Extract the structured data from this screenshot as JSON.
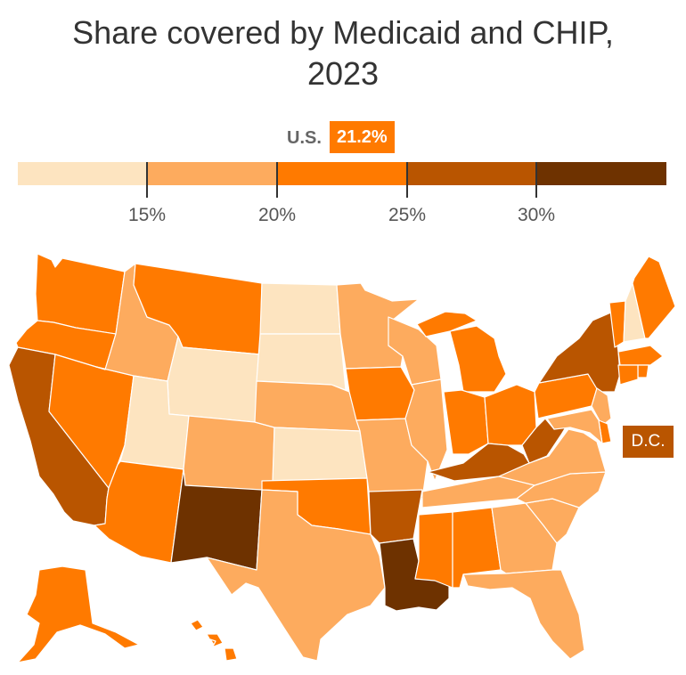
{
  "title_line1": "Share covered by Medicaid and CHIP,",
  "title_line2": "2023",
  "us": {
    "label": "U.S.",
    "value": "21.2%"
  },
  "legend": {
    "bins": [
      {
        "color": "#fde4c0"
      },
      {
        "color": "#fdab5e"
      },
      {
        "color": "#ff7a00"
      },
      {
        "color": "#b95500"
      },
      {
        "color": "#6e3200"
      }
    ],
    "ticks": [
      "15%",
      "20%",
      "25%",
      "30%"
    ]
  },
  "dc_label": "D.C.",
  "chart_data": {
    "type": "choropleth",
    "bins": [
      {
        "range": "<15%",
        "color": "#fde4c0"
      },
      {
        "range": "15–20%",
        "color": "#fdab5e"
      },
      {
        "range": "20–25%",
        "color": "#ff7a00"
      },
      {
        "range": "25–30%",
        "color": "#b95500"
      },
      {
        "range": ">30%",
        "color": "#6e3200"
      }
    ],
    "national_value": 21.2,
    "states": {
      "WA": 2,
      "OR": 2,
      "CA": 3,
      "NV": 2,
      "ID": 1,
      "MT": 2,
      "WY": 0,
      "UT": 0,
      "AZ": 2,
      "NM": 4,
      "CO": 1,
      "ND": 0,
      "SD": 0,
      "NE": 1,
      "KS": 0,
      "OK": 2,
      "TX": 1,
      "MN": 1,
      "IA": 2,
      "MO": 1,
      "AR": 3,
      "LA": 4,
      "WI": 1,
      "IL": 1,
      "MI": 2,
      "IN": 2,
      "OH": 2,
      "KY": 3,
      "TN": 1,
      "MS": 2,
      "AL": 2,
      "GA": 1,
      "FL": 1,
      "SC": 1,
      "NC": 1,
      "VA": 1,
      "WV": 3,
      "PA": 2,
      "NY": 3,
      "VT": 2,
      "NH": 0,
      "ME": 2,
      "MA": 2,
      "RI": 2,
      "CT": 2,
      "NJ": 1,
      "DE": 2,
      "MD": 1,
      "DC": 3,
      "AK": 2,
      "HI": 2
    }
  }
}
